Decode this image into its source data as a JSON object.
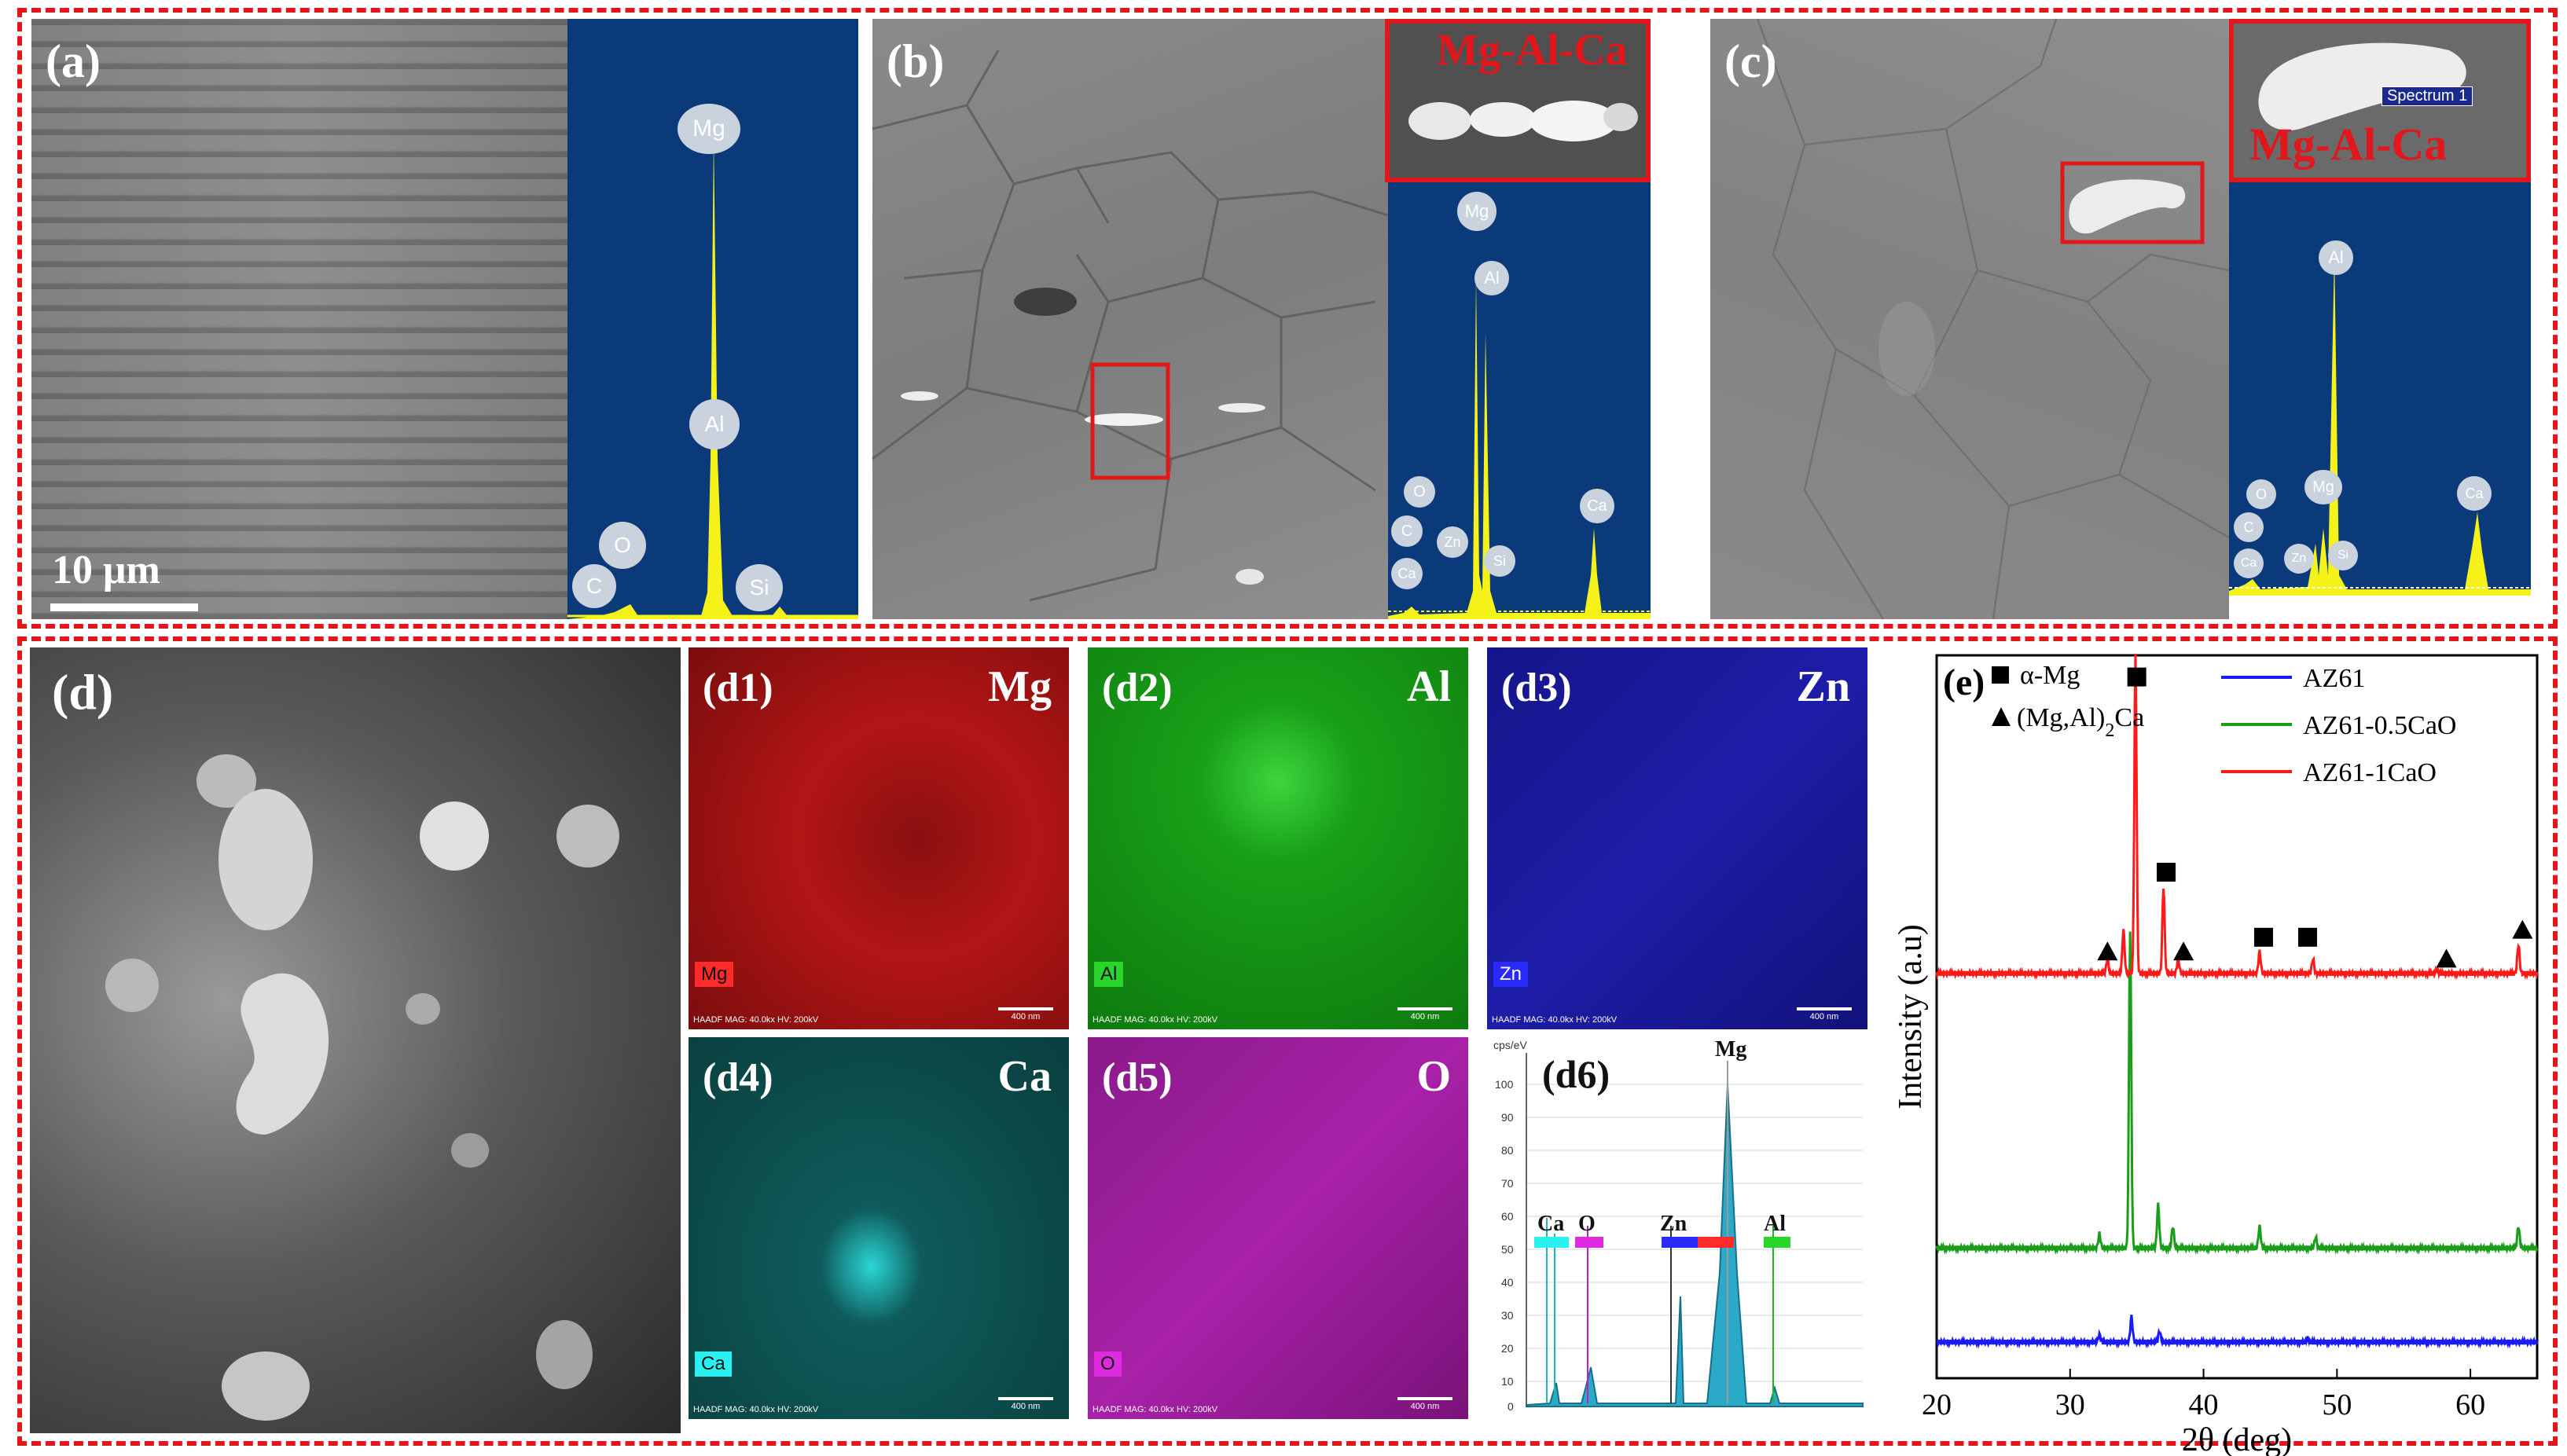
{
  "top_row": {
    "panel_a": {
      "label": "(a)",
      "scale_bar": "10 μm",
      "eds_peaks": [
        "Mg",
        "Al",
        "O",
        "C",
        "Si"
      ]
    },
    "panel_b": {
      "label": "(b)",
      "inset_label": "Mg-Al-Ca",
      "eds_peaks": [
        "Mg",
        "Al",
        "O",
        "C",
        "Ca",
        "Zn",
        "Si",
        "Ca"
      ]
    },
    "panel_c": {
      "label": "(c)",
      "inset_label": "Mg-Al-Ca",
      "inset_spectrum": "Spectrum 1",
      "eds_peaks": [
        "Al",
        "Mg",
        "O",
        "C",
        "Ca",
        "Zn",
        "Si",
        "Ca"
      ]
    }
  },
  "bottom_row": {
    "panel_d": {
      "label": "(d)"
    },
    "maps": [
      {
        "label": "(d1)",
        "element": "Mg",
        "tag": "Mg",
        "color": "#d11a1a"
      },
      {
        "label": "(d2)",
        "element": "Al",
        "tag": "Al",
        "color": "#1fb81f"
      },
      {
        "label": "(d3)",
        "element": "Zn",
        "tag": "Zn",
        "color": "#2a2ad6"
      },
      {
        "label": "(d4)",
        "element": "Ca",
        "tag": "Ca",
        "color": "#1fd6d6"
      },
      {
        "label": "(d5)",
        "element": "O",
        "tag": "O",
        "color": "#c21fc2"
      }
    ],
    "map_footer": "HAADF  MAG: 40.0kx  HV: 200kV",
    "map_scale": "400 nm",
    "panel_d6": {
      "label": "(d6)",
      "unit": "cps/eV",
      "y_ticks": [
        "100",
        "90",
        "80",
        "70",
        "60",
        "50",
        "40",
        "30",
        "20",
        "10",
        "0"
      ],
      "peak_labels": [
        "Ca",
        "O",
        "Zn",
        "Mg",
        "Al"
      ]
    }
  },
  "chart_data": {
    "type": "line",
    "panel_label": "(e)",
    "xlabel": "2θ (deg)",
    "ylabel": "Intensity (a.u)",
    "xlim": [
      20,
      65
    ],
    "x_ticks": [
      20,
      30,
      40,
      50,
      60
    ],
    "legend": {
      "placement": "top-right",
      "entries": [
        {
          "name": "AZ61",
          "color": "#1a1aff"
        },
        {
          "name": "AZ61-0.5CaO",
          "color": "#1a9e1a"
        },
        {
          "name": "AZ61-1CaO",
          "color": "#ff1a1a"
        }
      ]
    },
    "marker_legend": [
      {
        "symbol": "square",
        "label": "α-Mg"
      },
      {
        "symbol": "triangle",
        "label_prefix": "(Mg,Al)",
        "label_sub": "2",
        "label_suffix": "Ca"
      }
    ],
    "series": [
      {
        "name": "AZ61",
        "color": "#1a1aff",
        "baseline": 0.05,
        "peaks": [
          [
            32.2,
            0.01
          ],
          [
            34.6,
            0.035
          ],
          [
            36.7,
            0.015
          ],
          [
            47.8,
            0.005
          ]
        ]
      },
      {
        "name": "AZ61-0.5CaO",
        "color": "#1a9e1a",
        "baseline": 0.18,
        "peaks": [
          [
            32.2,
            0.02
          ],
          [
            34.5,
            0.44
          ],
          [
            36.6,
            0.06
          ],
          [
            37.7,
            0.03
          ],
          [
            44.2,
            0.03
          ],
          [
            48.4,
            0.015
          ],
          [
            63.6,
            0.03
          ]
        ]
      },
      {
        "name": "AZ61-1CaO",
        "color": "#ff1a1a",
        "baseline": 0.56,
        "peaks": [
          [
            32.8,
            0.02
          ],
          [
            34.0,
            0.06
          ],
          [
            34.9,
            0.44
          ],
          [
            37.0,
            0.12
          ],
          [
            38.1,
            0.02
          ],
          [
            44.2,
            0.03
          ],
          [
            48.2,
            0.02
          ],
          [
            57.5,
            0.005
          ],
          [
            63.6,
            0.04
          ]
        ]
      }
    ],
    "alpha_mg_markers": [
      35.0,
      37.2,
      44.5,
      47.8
    ],
    "ca_phase_markers": [
      32.8,
      38.5,
      58.2,
      63.9
    ]
  }
}
